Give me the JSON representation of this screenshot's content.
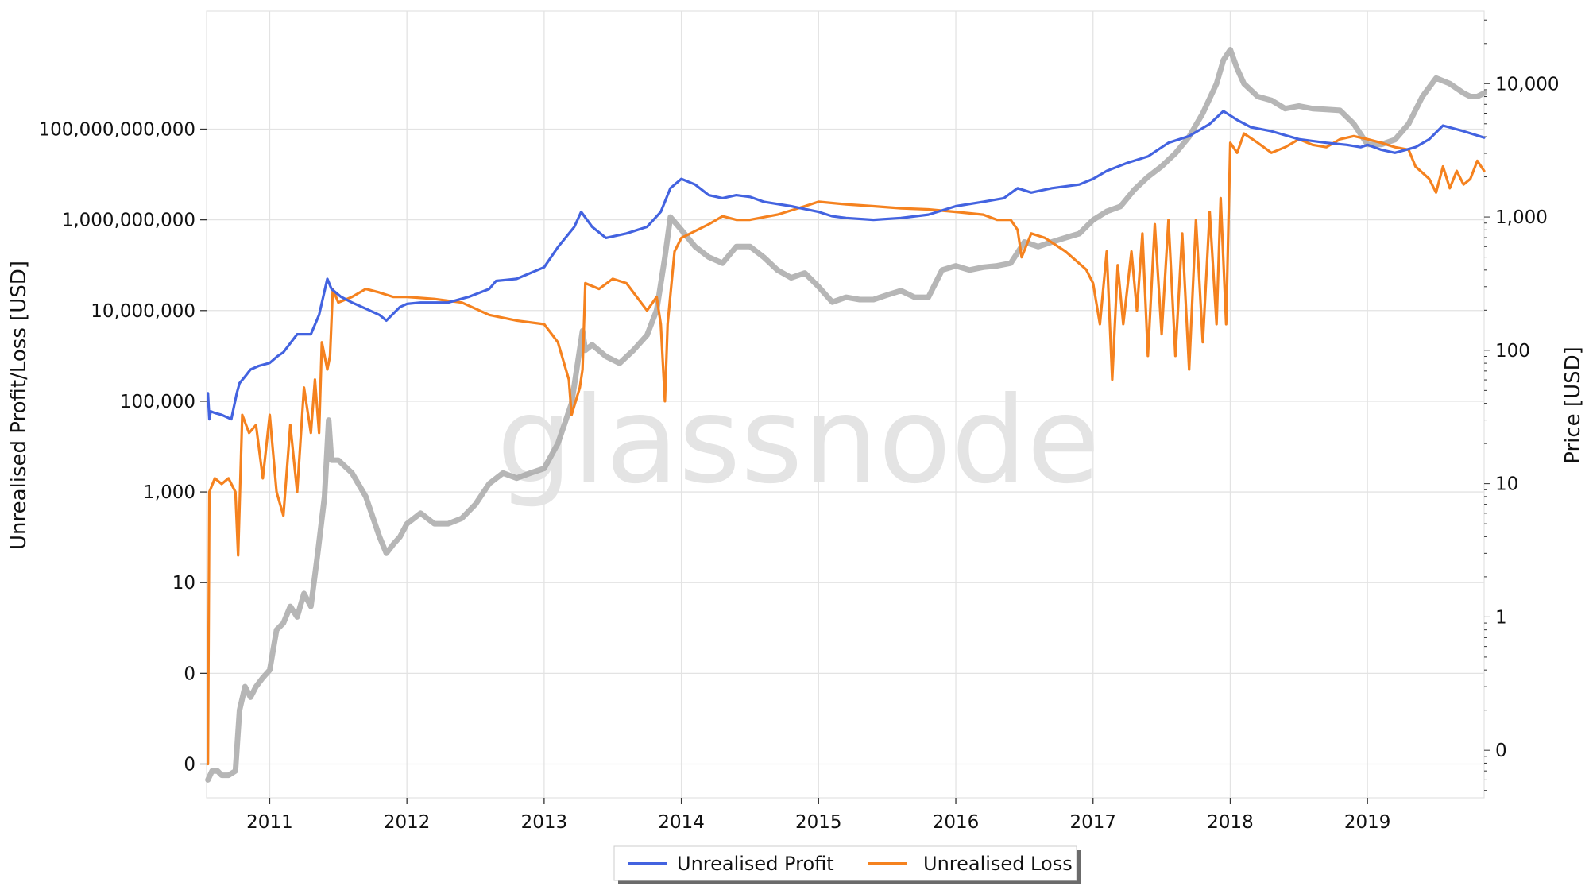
{
  "watermark": "glassnode",
  "chart_data": {
    "type": "line",
    "x_axis": {
      "ticks": [
        "2011",
        "2012",
        "2013",
        "2014",
        "2015",
        "2016",
        "2017",
        "2018",
        "2019"
      ],
      "range": [
        2010.54,
        2019.85
      ],
      "grid": true
    },
    "y_left": {
      "label": "Unrealised Profit/Loss [USD]",
      "scale": "log",
      "ticks": [
        {
          "value": 0.001,
          "label": "0"
        },
        {
          "value": 0.1,
          "label": "0"
        },
        {
          "value": 10,
          "label": "10"
        },
        {
          "value": 1000,
          "label": "1,000"
        },
        {
          "value": 100000,
          "label": "100,000"
        },
        {
          "value": 10000000,
          "label": "10,000,000"
        },
        {
          "value": 1000000000,
          "label": "1,000,000,000"
        },
        {
          "value": 100000000000,
          "label": "100,000,000,000"
        }
      ],
      "range": [
        0.00018,
        40000000000000
      ]
    },
    "y_right": {
      "label": "Price [USD]",
      "scale": "log",
      "ticks": [
        {
          "value": 0.1,
          "label": "0"
        },
        {
          "value": 1,
          "label": "1"
        },
        {
          "value": 10,
          "label": "10"
        },
        {
          "value": 100,
          "label": "100"
        },
        {
          "value": 1000,
          "label": "1,000"
        },
        {
          "value": 10000,
          "label": "10,000"
        }
      ],
      "range": [
        0.044,
        35000
      ]
    },
    "legend": {
      "position": "bottom-center",
      "entries": [
        "Unrealised Profit",
        "Unrealised Loss"
      ]
    },
    "series": [
      {
        "name": "Unrealised Profit",
        "axis": "left",
        "color": "#4363e0",
        "x": [
          2010.55,
          2010.56,
          2010.57,
          2010.6,
          2010.65,
          2010.72,
          2010.76,
          2010.78,
          2010.82,
          2010.86,
          2010.92,
          2011.0,
          2011.06,
          2011.1,
          2011.2,
          2011.3,
          2011.36,
          2011.42,
          2011.45,
          2011.52,
          2011.6,
          2011.7,
          2011.8,
          2011.85,
          2011.95,
          2012.0,
          2012.1,
          2012.3,
          2012.45,
          2012.6,
          2012.65,
          2012.8,
          2013.0,
          2013.1,
          2013.22,
          2013.27,
          2013.35,
          2013.45,
          2013.6,
          2013.75,
          2013.85,
          2013.92,
          2014.0,
          2014.1,
          2014.2,
          2014.3,
          2014.4,
          2014.5,
          2014.6,
          2014.8,
          2015.0,
          2015.1,
          2015.2,
          2015.4,
          2015.6,
          2015.8,
          2016.0,
          2016.2,
          2016.35,
          2016.45,
          2016.55,
          2016.7,
          2016.9,
          2017.0,
          2017.1,
          2017.25,
          2017.4,
          2017.55,
          2017.7,
          2017.85,
          2017.95,
          2018.05,
          2018.15,
          2018.3,
          2018.5,
          2018.7,
          2018.85,
          2018.95,
          2019.0,
          2019.1,
          2019.2,
          2019.35,
          2019.45,
          2019.55,
          2019.7,
          2019.85
        ],
        "y": [
          150000,
          40000,
          60000,
          55000,
          50000,
          40000,
          150000,
          250000,
          350000,
          500000,
          600000,
          700000,
          1000000,
          1200000,
          3000000,
          3000000,
          8000000,
          50000000,
          30000000,
          20000000,
          15000000,
          11000000,
          8000000,
          6000000,
          12000000,
          14000000,
          15000000,
          15000000,
          20000000,
          30000000,
          45000000,
          50000000,
          90000000,
          250000000,
          700000000,
          1500000000,
          700000000,
          400000000,
          500000000,
          700000000,
          1500000000,
          5000000000,
          8000000000,
          6000000000,
          3500000000,
          3000000000,
          3500000000,
          3200000000,
          2500000000,
          2000000000,
          1500000000,
          1200000000,
          1100000000,
          1000000000,
          1100000000,
          1300000000,
          2000000000,
          2500000000,
          3000000000,
          5000000000,
          4000000000,
          5000000000,
          6000000000,
          8000000000,
          12000000000,
          18000000000,
          25000000000,
          50000000000,
          70000000000,
          130000000000,
          250000000000,
          160000000000,
          110000000000,
          90000000000,
          60000000000,
          50000000000,
          45000000000,
          40000000000,
          45000000000,
          35000000000,
          30000000000,
          40000000000,
          60000000000,
          120000000000,
          90000000000,
          65000000000
        ]
      },
      {
        "name": "Unrealised Loss",
        "axis": "left",
        "color": "#f5821f",
        "x": [
          2010.55,
          2010.56,
          2010.6,
          2010.65,
          2010.7,
          2010.75,
          2010.77,
          2010.8,
          2010.85,
          2010.9,
          2010.95,
          2011.0,
          2011.05,
          2011.1,
          2011.15,
          2011.2,
          2011.25,
          2011.3,
          2011.33,
          2011.36,
          2011.38,
          2011.42,
          2011.44,
          2011.46,
          2011.5,
          2011.6,
          2011.7,
          2011.8,
          2011.9,
          2012.0,
          2012.2,
          2012.4,
          2012.6,
          2012.8,
          2013.0,
          2013.1,
          2013.18,
          2013.2,
          2013.26,
          2013.28,
          2013.3,
          2013.4,
          2013.5,
          2013.6,
          2013.75,
          2013.82,
          2013.85,
          2013.88,
          2013.9,
          2013.95,
          2014.0,
          2014.2,
          2014.3,
          2014.4,
          2014.5,
          2014.7,
          2014.9,
          2015.0,
          2015.2,
          2015.4,
          2015.6,
          2015.8,
          2016.0,
          2016.2,
          2016.3,
          2016.4,
          2016.45,
          2016.48,
          2016.55,
          2016.65,
          2016.8,
          2016.95,
          2017.0,
          2017.05,
          2017.1,
          2017.14,
          2017.18,
          2017.22,
          2017.28,
          2017.32,
          2017.36,
          2017.4,
          2017.45,
          2017.5,
          2017.55,
          2017.6,
          2017.65,
          2017.7,
          2017.75,
          2017.8,
          2017.85,
          2017.9,
          2017.93,
          2017.97,
          2018.0,
          2018.05,
          2018.1,
          2018.2,
          2018.3,
          2018.4,
          2018.5,
          2018.6,
          2018.7,
          2018.8,
          2018.9,
          2019.0,
          2019.1,
          2019.2,
          2019.3,
          2019.35,
          2019.45,
          2019.5,
          2019.55,
          2019.6,
          2019.65,
          2019.7,
          2019.75,
          2019.8,
          2019.85
        ],
        "y": [
          0.001,
          1000,
          2000,
          1500,
          2000,
          1000,
          40,
          50000,
          20000,
          30000,
          2000,
          50000,
          1000,
          300,
          30000,
          1000,
          200000,
          20000,
          300000,
          20000,
          2000000,
          500000,
          1000000,
          30000000,
          15000000,
          20000000,
          30000000,
          25000000,
          20000000,
          20000000,
          18000000,
          15000000,
          8000000,
          6000000,
          5000000,
          2000000,
          300000,
          50000,
          200000,
          500000,
          40000000,
          30000000,
          50000000,
          40000000,
          10000000,
          20000000,
          5000000,
          100000,
          5000000,
          200000000,
          400000000,
          800000000,
          1200000000,
          1000000000,
          1000000000,
          1300000000,
          2000000000,
          2500000000,
          2200000000,
          2000000000,
          1800000000,
          1700000000,
          1500000000,
          1300000000,
          1000000000,
          1000000000,
          600000000,
          150000000,
          500000000,
          400000000,
          200000000,
          80000000,
          40000000,
          5000000,
          200000000,
          300000,
          100000000,
          5000000,
          200000000,
          10000000,
          500000000,
          1000000,
          800000000,
          3000000,
          1000000000,
          1000000,
          500000000,
          500000,
          1000000000,
          2000000,
          1500000000,
          5000000,
          3000000000,
          5000000,
          50000000000,
          30000000000,
          80000000000,
          50000000000,
          30000000000,
          40000000000,
          60000000000,
          45000000000,
          40000000000,
          60000000000,
          70000000000,
          60000000000,
          50000000000,
          40000000000,
          35000000000,
          15000000000,
          8000000000,
          4000000000,
          15000000000,
          5000000000,
          12000000000,
          6000000000,
          8000000000,
          20000000000,
          12000000000
        ]
      },
      {
        "name": "Price",
        "axis": "right",
        "color": "#a9a9a9",
        "x": [
          2010.55,
          2010.58,
          2010.62,
          2010.65,
          2010.7,
          2010.75,
          2010.78,
          2010.82,
          2010.86,
          2010.9,
          2010.95,
          2011.0,
          2011.05,
          2011.1,
          2011.15,
          2011.2,
          2011.25,
          2011.3,
          2011.35,
          2011.4,
          2011.43,
          2011.45,
          2011.5,
          2011.6,
          2011.7,
          2011.8,
          2011.85,
          2011.9,
          2011.95,
          2012.0,
          2012.1,
          2012.2,
          2012.3,
          2012.4,
          2012.5,
          2012.6,
          2012.7,
          2012.8,
          2012.9,
          2013.0,
          2013.1,
          2013.2,
          2013.28,
          2013.3,
          2013.35,
          2013.45,
          2013.55,
          2013.65,
          2013.75,
          2013.82,
          2013.88,
          2013.92,
          2014.0,
          2014.1,
          2014.2,
          2014.3,
          2014.4,
          2014.5,
          2014.6,
          2014.7,
          2014.8,
          2014.9,
          2015.0,
          2015.1,
          2015.2,
          2015.3,
          2015.4,
          2015.5,
          2015.6,
          2015.7,
          2015.8,
          2015.9,
          2016.0,
          2016.1,
          2016.2,
          2016.3,
          2016.4,
          2016.5,
          2016.6,
          2016.7,
          2016.8,
          2016.9,
          2017.0,
          2017.1,
          2017.2,
          2017.3,
          2017.4,
          2017.5,
          2017.6,
          2017.7,
          2017.8,
          2017.9,
          2017.95,
          2018.0,
          2018.05,
          2018.1,
          2018.2,
          2018.3,
          2018.4,
          2018.5,
          2018.6,
          2018.7,
          2018.8,
          2018.9,
          2019.0,
          2019.1,
          2019.2,
          2019.3,
          2019.4,
          2019.5,
          2019.6,
          2019.7,
          2019.75,
          2019.8,
          2019.85
        ],
        "y": [
          0.06,
          0.07,
          0.07,
          0.065,
          0.065,
          0.07,
          0.2,
          0.3,
          0.25,
          0.3,
          0.35,
          0.4,
          0.8,
          0.9,
          1.2,
          1.0,
          1.5,
          1.2,
          3,
          8,
          30,
          15,
          15,
          12,
          8,
          4,
          3,
          3.5,
          4,
          5,
          6,
          5,
          5,
          5.5,
          7,
          10,
          12,
          11,
          12,
          13,
          20,
          40,
          140,
          100,
          110,
          90,
          80,
          100,
          130,
          200,
          500,
          1000,
          800,
          600,
          500,
          450,
          600,
          600,
          500,
          400,
          350,
          380,
          300,
          230,
          250,
          240,
          240,
          260,
          280,
          250,
          250,
          400,
          430,
          400,
          420,
          430,
          450,
          650,
          600,
          650,
          700,
          750,
          950,
          1100,
          1200,
          1600,
          2000,
          2400,
          3000,
          4000,
          6000,
          10000,
          15000,
          18000,
          13000,
          10000,
          8000,
          7500,
          6500,
          6800,
          6500,
          6400,
          6300,
          5000,
          3500,
          3500,
          3800,
          5000,
          8000,
          11000,
          10000,
          8500,
          8000,
          8000,
          8500
        ]
      }
    ]
  }
}
